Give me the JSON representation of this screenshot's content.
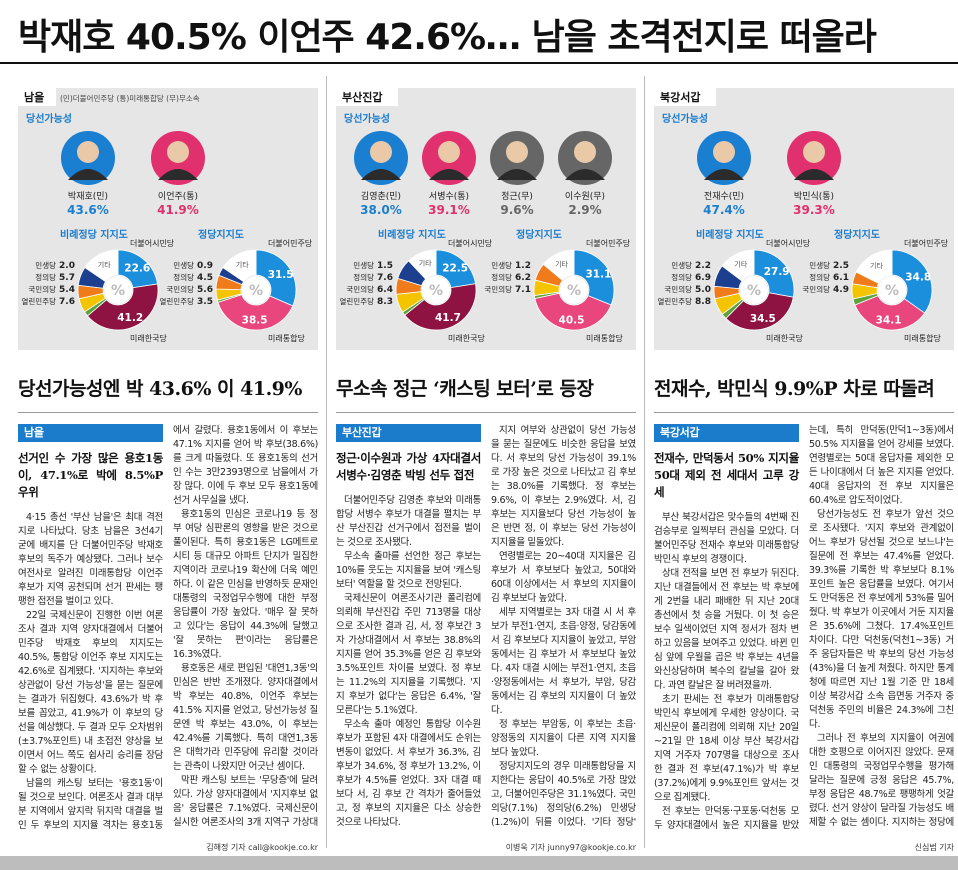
{
  "headline": "박재호 40.5% 이언주 42.6%… 남을 초격전지로 떠올라",
  "panels": [
    {
      "region": "남을",
      "legend": "(민)더불어민주당 (통)미래통합당 (무)무소속",
      "win_label": "당선가능성",
      "candidates": [
        {
          "name": "박재호(민)",
          "value": "43.6%",
          "color": "#1a7fd0"
        },
        {
          "name": "이언주(통)",
          "value": "41.9%",
          "color": "#e0306e"
        }
      ],
      "donuts": [
        {
          "title": "비례정당 지지도",
          "center": "%",
          "segments": [
            {
              "name": "더불어시민당",
              "value": 22.6,
              "color": "#1b8fdc"
            },
            {
              "name": "미래한국당",
              "value": 41.2,
              "color": "#8e1342"
            },
            {
              "name": "민생당",
              "value": 2.0,
              "value_label": "2.0",
              "color": "#5ba33a"
            },
            {
              "name": "정의당",
              "value": 5.7,
              "color": "#f5c400"
            },
            {
              "name": "국민의당",
              "value": 5.4,
              "color": "#f07b1a"
            },
            {
              "name": "열린민주당",
              "value": 7.6,
              "color": "#1d3f8f"
            },
            {
              "name": "기타",
              "value": 15.5,
              "color": "#ffffff"
            }
          ]
        },
        {
          "title": "정당지지도",
          "center": "%",
          "segments": [
            {
              "name": "더불어민주당",
              "value": 31.5,
              "color": "#1b8fdc"
            },
            {
              "name": "미래통합당",
              "value": 38.5,
              "color": "#e8467c"
            },
            {
              "name": "민생당",
              "value": 0.9,
              "color": "#5ba33a"
            },
            {
              "name": "정의당",
              "value": 4.5,
              "color": "#f5c400"
            },
            {
              "name": "국민의당",
              "value": 5.6,
              "color": "#f07b1a"
            },
            {
              "name": "열린민주당",
              "value": 3.5,
              "color": "#1d3f8f"
            },
            {
              "name": "기타",
              "value": 15.5,
              "color": "#ffffff"
            }
          ]
        }
      ],
      "subheadline": "당선가능성엔 박 43.6% 이 41.9%",
      "section": "남을",
      "lead": "선거인 수 가장 많은 용호1동이, 47.1%로 박에 8.5%P 우위",
      "paragraphs": [
        "4·15 총선 '부산 남을'은 최대 격전지로 나타났다. 당초 남을은 3선4기 굳에 배지를 단 더불어민주당 박재호 후보의 독주가 예상됐다. 그러나 보수 여전사로 알려진 미래통합당 이언주 후보가 지역 공천되며 선거 판세는 팽팽한 접전을 벌이고 있다.",
        "22일 국제신문이 진행한 이번 여론조사 결과 지역 양자대결에서 더불어민주당 박재호 후보의 지지도는 40.5%, 통합당 이언주 후보 지지도는 42.6%로 집계됐다. '지지하는 후보와 상관없이 당선 가능성'을 묻는 질문에는 결과가 뒤집혔다. 43.6%가 박 후보를 꼽았고, 41.9%가 이 후보의 당선을 예상했다. 두 결과 모두 오차범위(±3.7%포인트) 내 초접전 양상을 보이면서 어느 쪽도 쉽사리 승리를 장담할 수 없는 상황이다.",
        "남을의 캐스팅 보터는 '용호1동'이 될 것으로 보인다. 여론조사 결과 대부분 지역에서 앞지락 뒤지락 대결을 벌인 두 후보의 지지율 격차는 용호1동에서 갈렸다. 용호1동에서 이 후보는 47.1% 지지를 얻어 박 후보(38.6%)를 크게 따돌렸다. 또 용호1동의 선거인 수는 3만2393명으로 남을에서 가장 많다. 이에 두 후보 모두 용호1동에 선거 사무실을 냈다.",
        "용호1동의 민심은 코로나19 등 정부 여당 심판론의 영향을 받은 것으로 풀이된다. 특히 용호1동은 LG메트로시티 등 대규모 아파트 단지가 밀집한 지역이라 코로나19 확산에 더욱 예민하다. 이 같은 민심을 반영하듯 문재인 대통령의 국정업무수행에 대한 부정 응답률이 가장 높았다. '매우 잘 못하고 있다'는 응답이 44.3%에 달했고 '잘 못하는 편'이라는 응답률은 16.3%였다.",
        "용호동은 새로 편입된 '대연1,3동'의 민심은 반반 조개졌다. 양자대결에서 박 후보는 40.8%, 이언주 후보는 41.5% 지지를 얻었고, 당선가능성 질문엔 박 후보는 43.0%, 이 후보는 42.4%를 기록했다. 특히 대연1,3동은 대학가라 민주당에 유리할 것이라는 관측이 나왔지만 어긋난 셈이다.",
        "막판 캐스팅 보트는 '무당층'에 달려 있다. 가상 양자대결에서 '지지후보 없음' 응답률은 7.1%였다. 국제신문이 실시한 여론조사의 3개 지역구 가상대결에서 가장 높은 수치다. 4·15 총선까지 한달도 채 남지 않은 지금 무당층 표심이 남을의 승부를 가를 전망이다."
      ],
      "byline": "김해정 기자 call@kookje.co.kr"
    },
    {
      "region": "부산진갑",
      "win_label": "당선가능성",
      "candidates": [
        {
          "name": "김영춘(민)",
          "value": "38.0%",
          "color": "#1a7fd0"
        },
        {
          "name": "서병수(통)",
          "value": "39.1%",
          "color": "#e0306e"
        },
        {
          "name": "정근(무)",
          "value": "9.6%",
          "color": "#666666"
        },
        {
          "name": "이수원(무)",
          "value": "2.9%",
          "color": "#666666"
        }
      ],
      "donuts": [
        {
          "title": "비례정당 지지도",
          "center": "%",
          "segments": [
            {
              "name": "더불어시민당",
              "value": 22.5,
              "color": "#1b8fdc"
            },
            {
              "name": "미래한국당",
              "value": 41.7,
              "color": "#8e1342"
            },
            {
              "name": "민생당",
              "value": 1.5,
              "color": "#5ba33a"
            },
            {
              "name": "정의당",
              "value": 7.6,
              "color": "#f5c400"
            },
            {
              "name": "국민의당",
              "value": 6.4,
              "color": "#f07b1a"
            },
            {
              "name": "열린민주당",
              "value": 8.3,
              "color": "#1d3f8f"
            },
            {
              "name": "기타",
              "value": 12,
              "color": "#ffffff"
            }
          ]
        },
        {
          "title": "정당지지도",
          "center": "%",
          "segments": [
            {
              "name": "더불어민주당",
              "value": 31.1,
              "color": "#1b8fdc"
            },
            {
              "name": "미래통합당",
              "value": 40.5,
              "color": "#e8467c"
            },
            {
              "name": "민생당",
              "value": 1.2,
              "color": "#5ba33a"
            },
            {
              "name": "정의당",
              "value": 6.2,
              "color": "#f5c400"
            },
            {
              "name": "국민의당",
              "value": 7.1,
              "color": "#f07b1a"
            },
            {
              "name": "기타",
              "value": 13.9,
              "color": "#ffffff"
            }
          ]
        }
      ],
      "subheadline": "무소속 정근 ‘캐스팅 보터’로 등장",
      "section": "부산진갑",
      "lead": "정근·이수원과 가상 4자대결서 서병수·김영춘 박빙 선두 접전",
      "paragraphs": [
        "더불어민주당 김영춘 후보와 미래통합당 서병수 후보가 대결을 펼치는 부산 부산진갑 선거구에서 접전을 벌이는 것으로 조사됐다.",
        "무소속 출마를 선언한 정근 후보는 10%를 웃도는 지지율을 보여 '캐스팅 보터' 역할을 할 것으로 전망된다.",
        "국제신문이 여론조사기관 폴리컴에 의뢰해 부산진갑 주민 713명을 대상으로 조사한 결과 김, 서, 정 후보간 3자 가상대결에서 서 후보는 38.8%의 지지를 얻어 35.3%를 얻은 김 후보와 3.5%포인트 차이를 보였다. 정 후보는 11.2%의 지지율을 기록했다. '지지 후보가 없다'는 응답은 6.4%, '잘 모른다'는 5.1%였다.",
        "무소속 출마 예정인 통합당 이수원 후보가 포함된 4자 대결에서도 순위는 변동이 없었다. 서 후보가 36.3%, 김 후보가 34.6%, 정 후보가 13.2%, 이 후보가 4.5%를 얻었다. 3자 대결 때보다 서, 김 후보 간 격차가 줄어들었고, 정 후보의 지지율은 다소 상승한 것으로 나타났다.",
        "지지 여부와 상관없이 당선 가능성을 묻는 질문에도 비슷한 응답을 보였다. 서 후보의 당선 가능성이 39.1%로 가장 높은 것으로 나타났고 김 후보는 38.0%를 기록했다. 정 후보는 9.6%, 이 후보는 2.9%였다. 서, 김 후보는 지지율보다 당선 가능성이 높은 반면 정, 이 후보는 당선 가능성이 지지율을 밑돌았다.",
        "연령별로는 20~40대 지지율은 김 후보가 서 후보보다 높았고, 50대와 60대 이상에서는 서 후보의 지지율이 김 후보보다 높았다.",
        "세부 지역별로는 3자 대결 시 서 후보가 부전1·연지, 초읍·양정, 당감동에서 김 후보보다 지지율이 높았고, 부암동에서는 김 후보가 서 후보보다 높았다. 4자 대결 시에는 부전1·연지, 초읍·양정동에서는 서 후보가, 부암, 당감동에서는 김 후보의 지지율이 더 높았다.",
        "정 후보는 부암동, 이 후보는 초읍·양정동의 지지율이 다른 지역 지지율보다 높았다.",
        "정당지지도의 경우 미래통합당을 지지한다는 응답이 40.5%로 가장 많았고, 더불어민주당은 31.1%였다. 국민의당(7.1%) 정의당(6.2%) 민생당(1.2%)이 뒤를 이었다. '기타 정당' '지지 정당 없음' '잘 모름' 응답은 13.9%였다."
      ],
      "byline": "이병욱 기자 junny97@kookje.co.kr"
    },
    {
      "region": "북강서갑",
      "win_label": "당선가능성",
      "candidates": [
        {
          "name": "전재수(민)",
          "value": "47.4%",
          "color": "#1a7fd0"
        },
        {
          "name": "박민식(통)",
          "value": "39.3%",
          "color": "#e0306e"
        }
      ],
      "donuts": [
        {
          "title": "비례정당 지지도",
          "center": "%",
          "segments": [
            {
              "name": "더불어시민당",
              "value": 27.9,
              "color": "#1b8fdc"
            },
            {
              "name": "미래한국당",
              "value": 34.5,
              "color": "#8e1342"
            },
            {
              "name": "민생당",
              "value": 2.2,
              "color": "#5ba33a"
            },
            {
              "name": "정의당",
              "value": 6.9,
              "color": "#f5c400"
            },
            {
              "name": "국민의당",
              "value": 5.0,
              "value_label": "5.0",
              "color": "#f07b1a"
            },
            {
              "name": "열린민주당",
              "value": 8.8,
              "color": "#1d3f8f"
            },
            {
              "name": "기타",
              "value": 14.7,
              "color": "#ffffff"
            }
          ]
        },
        {
          "title": "정당지지도",
          "center": "%",
          "segments": [
            {
              "name": "더불어민주당",
              "value": 34.8,
              "color": "#1b8fdc"
            },
            {
              "name": "미래통합당",
              "value": 34.1,
              "color": "#e8467c"
            },
            {
              "name": "민생당",
              "value": 2.5,
              "color": "#5ba33a"
            },
            {
              "name": "정의당",
              "value": 6.1,
              "color": "#f5c400"
            },
            {
              "name": "국민의당",
              "value": 4.9,
              "color": "#f07b1a"
            },
            {
              "name": "기타",
              "value": 17.6,
              "color": "#ffffff"
            }
          ]
        }
      ],
      "subheadline": "전재수, 박민식 9.9%P 차로 따돌려",
      "section": "북강서갑",
      "lead": "전재수, 만덕동서 50% 지지율 50대 제외 전 세대서 고루 강세",
      "paragraphs": [
        "부산 북강서갑은 맞수들의 4번째 진검승부로 일찍부터 관심을 모았다. 더불어민주당 전재수 후보와 미래통합당 박민식 후보의 경쟁이다.",
        "상대 전적을 보면 전 후보가 뒤진다. 지난 대결들에서 전 후보는 박 후보에게 2번을 내리 패배한 뒤 지난 20대 총선에서 첫 승을 거뒀다. 이 첫 승은 보수 일색이었던 지역 정서가 점차 변하고 있음을 보여주고 있었다. 바뀐 민심 앞에 우월을 곱은 박 후보는 4년을 와신상담하며 복수의 칼날을 갈아 왔다. 과연 칼날은 잘 버려졌을까.",
        "초기 판세는 전 후보가 미래통합당 박민식 후보에게 우세한 양상이다. 국제신문이 폴리컴에 의뢰해 지난 20일~21일 만 18세 이상 부산 북강서갑 지역 거주자 707명을 대상으로 조사한 결과 전 후보(47.1%)가 박 후보(37.2%)에게 9.9%포인트 앞서는 것으로 집계됐다.",
        "전 후보는 만덕동·구포동·덕천동 모두 양자대결에서 높은 지지율을 받았는데, 특히 만덕동(만덕1~3동)에서 50.5% 지지율을 얻어 강세를 보였다. 연령별로는 50대 응답자를 제외한 모든 나이대에서 더 높은 지지를 얻었다. 40대 응답자의 전 후보 지지율은 60.4%로 압도적이었다.",
        "당선가능성도 전 후보가 앞선 것으로 조사됐다. '지지 후보와 관계없이 어느 후보가 당선될 것으로 보느냐'는 질문에 전 후보는 47.4%를 얻었다. 39.3%를 기록한 박 후보보다 8.1%포인트 높은 응답률을 보였다. 여기서도 만덕동은 전 후보에게 53%를 밀어줬다. 박 후보가 이곳에서 거둔 지지율은 35.6%에 그쳤다. 17.4%포인트 차이다. 다만 덕천동(덕천1~3동) 거주 응답자들은 박 후보의 당선 가능성(43%)을 더 높게 쳐줬다. 하지만 통계청에 따르면 지난 1월 기준 만 18세 이상 북강서갑 소속 읍면동 거주자 중 덕천동 주민의 비율은 24.3%에 그친다.",
        "그러나 전 후보의 지지율이 여권에 대한 호평으로 이어지진 않았다. 문재인 대통령의 국정업무수행을 평가해 달라는 질문에 긍정 응답은 45.7%, 부정 응답은 48.7%로 팽팽하게 엇갈렸다. 선거 양상이 달라질 가능성도 배제할 수 없는 셈이다. 지지하는 정당에 대해선 ▷민주당 34.8% ▷통합당 34.1% ▷정의당 6.1% ▷국민의당 4.9%로 나타났다."
      ],
      "byline": "신심범 기자"
    }
  ]
}
